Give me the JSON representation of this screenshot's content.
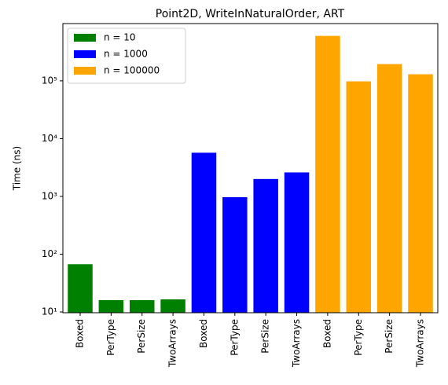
{
  "chart_data": {
    "type": "bar",
    "title": "Point2D, WriteInNaturalOrder, ART",
    "ylabel": "Time (ns)",
    "categories": [
      "Boxed",
      "PerType",
      "PerSize",
      "TwoArrays",
      "Boxed",
      "PerType",
      "PerSize",
      "TwoArrays",
      "Boxed",
      "PerType",
      "PerSize",
      "TwoArrays"
    ],
    "series": [
      {
        "name": "n = 10",
        "color": "#008000",
        "values": [
          67,
          16,
          16,
          16.5,
          null,
          null,
          null,
          null,
          null,
          null,
          null,
          null
        ]
      },
      {
        "name": "n = 1000",
        "color": "#0000ff",
        "values": [
          null,
          null,
          null,
          null,
          5700,
          970,
          2000,
          2600,
          null,
          null,
          null,
          null
        ]
      },
      {
        "name": "n = 100000",
        "color": "#ffa500",
        "values": [
          null,
          null,
          null,
          null,
          null,
          null,
          null,
          null,
          600000,
          98000,
          195000,
          130000
        ]
      }
    ],
    "log_y": true,
    "ylim": [
      9.7,
      980000
    ],
    "yticks": [
      {
        "value": 10,
        "label": "10¹"
      },
      {
        "value": 100,
        "label": "10²"
      },
      {
        "value": 1000,
        "label": "10³"
      },
      {
        "value": 10000,
        "label": "10⁴"
      },
      {
        "value": 100000,
        "label": "10⁵"
      }
    ],
    "legend": "upper left"
  }
}
